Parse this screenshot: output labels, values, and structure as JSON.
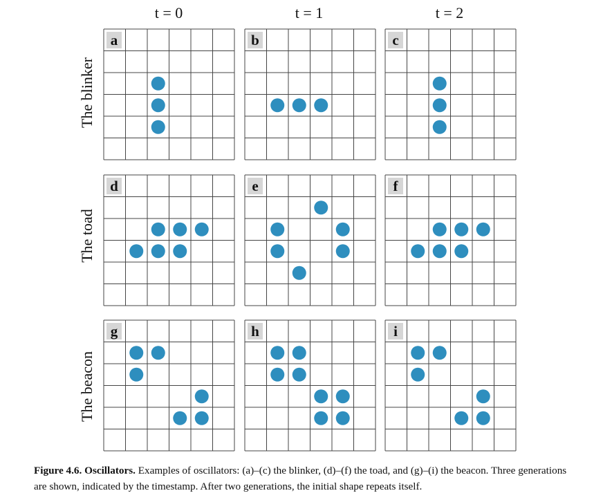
{
  "column_labels": [
    "t = 0",
    "t = 1",
    "t = 2"
  ],
  "row_labels": [
    "The blinker",
    "The toad",
    "The beacon"
  ],
  "grid_size": {
    "cols": 6,
    "rows": 6
  },
  "colors": {
    "cell": "#2e8ebe",
    "grid": "#444444",
    "letter_bg": "#d6d6d6"
  },
  "panels": [
    {
      "letter": "a",
      "cells": [
        [
          2,
          2
        ],
        [
          3,
          2
        ],
        [
          4,
          2
        ]
      ]
    },
    {
      "letter": "b",
      "cells": [
        [
          3,
          1
        ],
        [
          3,
          2
        ],
        [
          3,
          3
        ]
      ]
    },
    {
      "letter": "c",
      "cells": [
        [
          2,
          2
        ],
        [
          3,
          2
        ],
        [
          4,
          2
        ]
      ]
    },
    {
      "letter": "d",
      "cells": [
        [
          2,
          2
        ],
        [
          2,
          3
        ],
        [
          2,
          4
        ],
        [
          3,
          1
        ],
        [
          3,
          2
        ],
        [
          3,
          3
        ]
      ]
    },
    {
      "letter": "e",
      "cells": [
        [
          1,
          3
        ],
        [
          2,
          1
        ],
        [
          2,
          4
        ],
        [
          3,
          1
        ],
        [
          3,
          4
        ],
        [
          4,
          2
        ]
      ]
    },
    {
      "letter": "f",
      "cells": [
        [
          2,
          2
        ],
        [
          2,
          3
        ],
        [
          2,
          4
        ],
        [
          3,
          1
        ],
        [
          3,
          2
        ],
        [
          3,
          3
        ]
      ]
    },
    {
      "letter": "g",
      "cells": [
        [
          1,
          1
        ],
        [
          1,
          2
        ],
        [
          2,
          1
        ],
        [
          3,
          4
        ],
        [
          4,
          3
        ],
        [
          4,
          4
        ]
      ]
    },
    {
      "letter": "h",
      "cells": [
        [
          1,
          1
        ],
        [
          1,
          2
        ],
        [
          2,
          1
        ],
        [
          2,
          2
        ],
        [
          3,
          3
        ],
        [
          3,
          4
        ],
        [
          4,
          3
        ],
        [
          4,
          4
        ]
      ]
    },
    {
      "letter": "i",
      "cells": [
        [
          1,
          1
        ],
        [
          1,
          2
        ],
        [
          2,
          1
        ],
        [
          3,
          4
        ],
        [
          4,
          3
        ],
        [
          4,
          4
        ]
      ]
    }
  ],
  "caption": {
    "label": "Figure 4.6.",
    "title": "Oscillators.",
    "text": " Examples of oscillators: (a)–(c) the blinker, (d)–(f) the toad, and (g)–(i) the beacon. Three generations are shown, indicated by the timestamp. After two generations, the initial shape repeats itself."
  }
}
